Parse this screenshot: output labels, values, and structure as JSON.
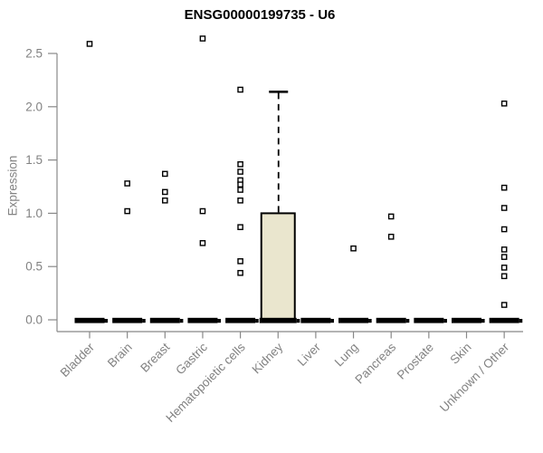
{
  "chart_data": {
    "type": "boxplot",
    "title": "ENSG00000199735 - U6",
    "ylabel": "Expression",
    "ylim": [
      0,
      2.5
    ],
    "ytick_values": [
      0,
      0.5,
      1.0,
      1.5,
      2.0,
      2.5
    ],
    "ytick_labels": [
      "0.0",
      "0.5",
      "1.0",
      "1.5",
      "2.0",
      "2.5"
    ],
    "grid": false,
    "legend": "none",
    "categories": [
      "Bladder",
      "Brain",
      "Breast",
      "Gastric",
      "Hematopoietic cells",
      "Kidney",
      "Liver",
      "Lung",
      "Pancreas",
      "Prostate",
      "Skin",
      "Unknown / Other"
    ],
    "series": [
      {
        "category": "Bladder",
        "q1": 0,
        "median": 0,
        "q3": 0,
        "whisker_low": 0,
        "whisker_high": 0,
        "outliers": [
          2.59
        ]
      },
      {
        "category": "Brain",
        "q1": 0,
        "median": 0,
        "q3": 0,
        "whisker_low": 0,
        "whisker_high": 0,
        "outliers": [
          1.28,
          1.02
        ]
      },
      {
        "category": "Breast",
        "q1": 0,
        "median": 0,
        "q3": 0,
        "whisker_low": 0,
        "whisker_high": 0,
        "outliers": [
          1.37,
          1.2,
          1.12
        ]
      },
      {
        "category": "Gastric",
        "q1": 0,
        "median": 0,
        "q3": 0,
        "whisker_low": 0,
        "whisker_high": 0,
        "outliers": [
          2.64,
          1.02,
          0.72
        ]
      },
      {
        "category": "Hematopoietic cells",
        "q1": 0,
        "median": 0,
        "q3": 0,
        "whisker_low": 0,
        "whisker_high": 0,
        "outliers": [
          2.16,
          1.46,
          1.39,
          1.31,
          1.27,
          1.22,
          1.12,
          0.87,
          0.55,
          0.44
        ]
      },
      {
        "category": "Kidney",
        "q1": 0,
        "median": 0,
        "q3": 1.0,
        "whisker_low": 0,
        "whisker_high": 2.14,
        "outliers": []
      },
      {
        "category": "Liver",
        "q1": 0,
        "median": 0,
        "q3": 0,
        "whisker_low": 0,
        "whisker_high": 0,
        "outliers": []
      },
      {
        "category": "Lung",
        "q1": 0,
        "median": 0,
        "q3": 0,
        "whisker_low": 0,
        "whisker_high": 0,
        "outliers": [
          0.67
        ]
      },
      {
        "category": "Pancreas",
        "q1": 0,
        "median": 0,
        "q3": 0,
        "whisker_low": 0,
        "whisker_high": 0,
        "outliers": [
          0.97,
          0.78
        ]
      },
      {
        "category": "Prostate",
        "q1": 0,
        "median": 0,
        "q3": 0,
        "whisker_low": 0,
        "whisker_high": 0,
        "outliers": []
      },
      {
        "category": "Skin",
        "q1": 0,
        "median": 0,
        "q3": 0,
        "whisker_low": 0,
        "whisker_high": 0,
        "outliers": []
      },
      {
        "category": "Unknown / Other",
        "q1": 0,
        "median": 0,
        "q3": 0,
        "whisker_low": 0,
        "whisker_high": 0,
        "outliers": [
          2.03,
          1.24,
          1.05,
          0.85,
          0.66,
          0.59,
          0.49,
          0.41,
          0.14
        ]
      }
    ],
    "colors": {
      "box_fill": "#EAE6CE",
      "box_border": "#000000",
      "bar": "#000000",
      "axis": "#888888",
      "tick_label": "#828282",
      "title": "#000000",
      "outlier_fill": "#ffffff",
      "outlier_border": "#000000"
    }
  }
}
